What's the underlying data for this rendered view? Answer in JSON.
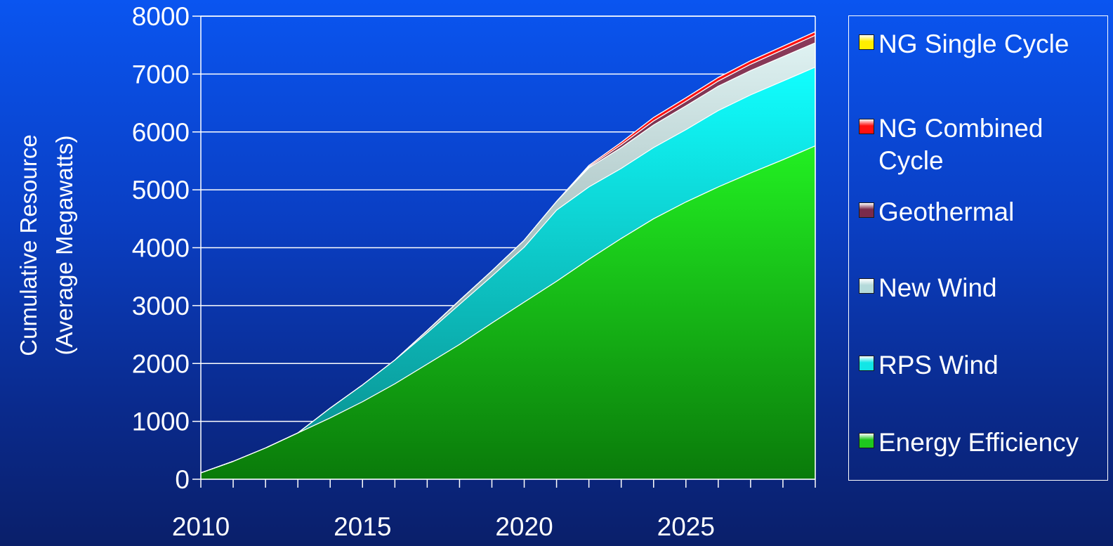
{
  "chart_data": {
    "type": "area",
    "stacked": true,
    "title": "",
    "xlabel": "",
    "ylabel": "Cumulative Resource (Average Megawatts)",
    "ylabel_lines": [
      "Cumulative Resource",
      "(Average Megawatts)"
    ],
    "ylim": [
      0,
      8000
    ],
    "yticks": [
      "0",
      "1000",
      "2000",
      "3000",
      "4000",
      "5000",
      "6000",
      "7000",
      "8000"
    ],
    "ytick_values": [
      0,
      1000,
      2000,
      3000,
      4000,
      5000,
      6000,
      7000,
      8000
    ],
    "xlim": [
      2010,
      2029
    ],
    "xticks": [
      "2010",
      "2015",
      "2020",
      "2025"
    ],
    "xtick_values": [
      2010,
      2015,
      2020,
      2025
    ],
    "x": [
      2010,
      2011,
      2012,
      2013,
      2014,
      2015,
      2016,
      2017,
      2018,
      2019,
      2020,
      2021,
      2022,
      2023,
      2024,
      2025,
      2026,
      2027,
      2028,
      2029
    ],
    "grid": "horizontal",
    "legend_position": "right",
    "series": [
      {
        "name": "Energy Efficiency",
        "color": "#1ec81e",
        "values": [
          110,
          310,
          540,
          800,
          1060,
          1340,
          1650,
          1990,
          2330,
          2700,
          3060,
          3420,
          3800,
          4160,
          4500,
          4790,
          5050,
          5290,
          5520,
          5760
        ]
      },
      {
        "name": "RPS Wind",
        "color": "#12e6e6",
        "values": [
          0,
          0,
          0,
          0,
          170,
          290,
          410,
          540,
          690,
          810,
          950,
          1230,
          1250,
          1210,
          1230,
          1250,
          1320,
          1350,
          1360,
          1360
        ]
      },
      {
        "name": "New Wind",
        "color": "#b4dada",
        "values": [
          0,
          0,
          0,
          0,
          0,
          0,
          0,
          40,
          70,
          90,
          120,
          150,
          330,
          360,
          390,
          410,
          420,
          420,
          420,
          420
        ]
      },
      {
        "name": "Geothermal",
        "color": "#7a2a4a",
        "values": [
          0,
          0,
          0,
          0,
          0,
          0,
          0,
          0,
          0,
          0,
          0,
          0,
          20,
          50,
          70,
          80,
          90,
          110,
          120,
          130
        ]
      },
      {
        "name": "NG Combined Cycle",
        "color": "#ff1010",
        "values": [
          0,
          0,
          0,
          0,
          0,
          0,
          0,
          0,
          0,
          0,
          0,
          0,
          20,
          40,
          60,
          60,
          60,
          60,
          60,
          60
        ]
      },
      {
        "name": "NG Single Cycle",
        "color": "#ffee00",
        "values": [
          0,
          0,
          0,
          0,
          0,
          0,
          0,
          0,
          0,
          0,
          0,
          0,
          0,
          0,
          0,
          0,
          0,
          0,
          0,
          0
        ]
      }
    ]
  },
  "legend": {
    "items": [
      {
        "label": "NG Single Cycle",
        "color": "#ffee00"
      },
      {
        "label": "NG Combined Cycle",
        "color": "#ff1010"
      },
      {
        "label": "Geothermal",
        "color": "#7a2a4a"
      },
      {
        "label": "New Wind",
        "color": "#b4dada"
      },
      {
        "label": "RPS Wind",
        "color": "#12e6e6"
      },
      {
        "label": "Energy Efficiency",
        "color": "#1ec81e"
      }
    ]
  }
}
